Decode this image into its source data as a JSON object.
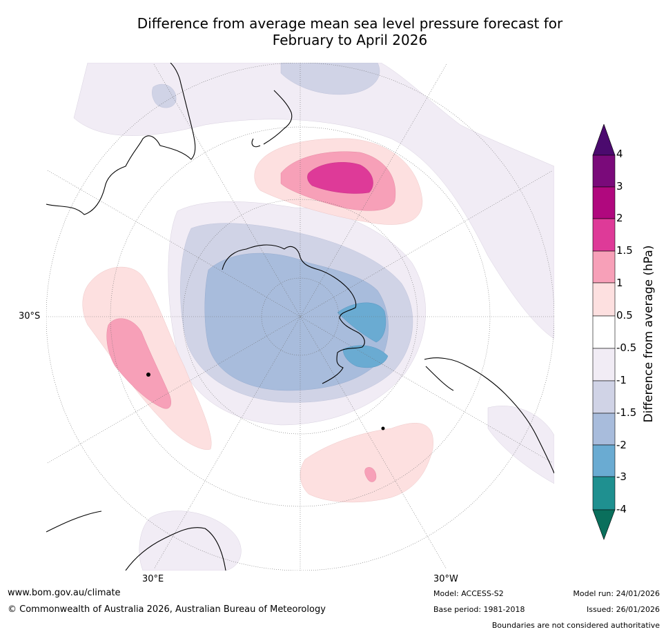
{
  "title": {
    "line1": "Difference from average mean sea level pressure forecast for",
    "line2": "February to April 2026"
  },
  "map": {
    "projection": "south-polar-stereographic",
    "lat_label_left": "30°S",
    "lon_label_bottom_left": "30°E",
    "lon_label_bottom_right": "30°W"
  },
  "colorbar": {
    "title": "Difference from average (hPa)",
    "ticks": [
      "4",
      "3",
      "2",
      "1.5",
      "1",
      "0.5",
      "-0.5",
      "-1",
      "-1.5",
      "-2",
      "-3",
      "-4"
    ],
    "colors": {
      "above_4": "#4b0a6e",
      "3_to_4": "#7a0a7a",
      "2_to_3": "#b0087e",
      "1.5_to_2": "#de3a98",
      "1_to_1.5": "#f7a0b8",
      "0.5_to_1": "#fde0e0",
      "-0.5_to_0.5": "#ffffff",
      "-1_to_-0.5": "#f1ecf5",
      "-1.5_to_-1": "#d0d3e6",
      "-2_to_-1.5": "#a8bcdc",
      "-3_to_-2": "#6aabd2",
      "-4_to_-3": "#1f9090",
      "below_-4": "#0a6f5c"
    }
  },
  "footer": {
    "website": "www.bom.gov.au/climate",
    "copyright": "© Commonwealth of Australia 2026, Australian Bureau of Meteorology",
    "model": "Model: ACCESS-S2",
    "base_period": "Base period: 1981-2018",
    "model_run": "Model run: 24/01/2026",
    "issued": "Issued: 26/01/2026",
    "disclaimer": "Boundaries are not considered authoritative"
  }
}
